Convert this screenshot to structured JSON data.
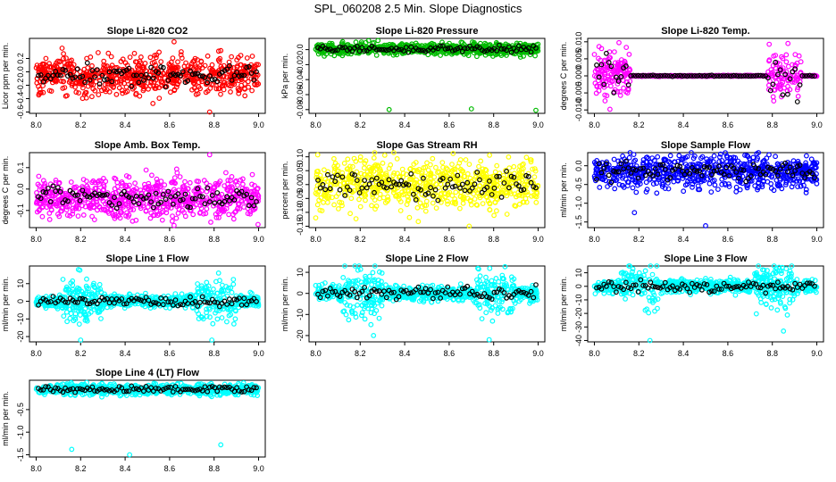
{
  "title": "SPL_060208  2.5 Min. Slope Diagnostics",
  "x_ticks": [
    "8.0",
    "8.2",
    "8.4",
    "8.6",
    "8.8",
    "9.0"
  ],
  "chart_data": [
    {
      "type": "scatter",
      "title": "Slope Li-820 CO2",
      "ylabel": "Licor ppm per min.",
      "color": "#ff0000",
      "xlim": [
        7.97,
        9.03
      ],
      "ylim": [
        -0.62,
        0.5
      ],
      "yticks": [
        -0.6,
        -0.4,
        -0.2,
        0.0,
        0.2
      ],
      "ytick_labels": [
        "-0.6",
        "-0.4",
        "-0.2",
        "0.0",
        "0.2"
      ],
      "center": -0.05,
      "spread": 0.14,
      "pattern": "uniform",
      "outliers": [
        [
          8.62,
          0.45
        ],
        [
          8.78,
          -0.6
        ]
      ]
    },
    {
      "type": "scatter",
      "title": "Slope Li-820 Pressure",
      "ylabel": "kPa per min.",
      "color": "#00bb00",
      "xlim": [
        7.97,
        9.03
      ],
      "ylim": [
        -0.085,
        0.015
      ],
      "yticks": [
        -0.08,
        -0.06,
        -0.04,
        -0.02,
        0.0
      ],
      "ytick_labels": [
        "-0.08",
        "-0.06",
        "-0.04",
        "-0.02",
        "0.0"
      ],
      "center": 0.001,
      "spread": 0.004,
      "pattern": "uniform",
      "outliers": [
        [
          8.33,
          -0.08
        ],
        [
          8.7,
          -0.079
        ],
        [
          8.99,
          -0.081
        ],
        [
          8.12,
          -0.008
        ]
      ]
    },
    {
      "type": "scatter",
      "title": "Slope Li-820 Temp.",
      "ylabel": "degrees C per min.",
      "color": "#ff00ff",
      "xlim": [
        7.97,
        9.03
      ],
      "ylim": [
        -0.011,
        0.011
      ],
      "yticks": [
        -0.01,
        -0.005,
        0.0,
        0.005,
        0.01
      ],
      "ytick_labels": [
        "-0.010",
        "-0.005",
        "0.000",
        "0.005",
        "0.010"
      ],
      "center": 0.0,
      "spread": 0.0035,
      "pattern": "temp",
      "outliers": [
        [
          8.07,
          -0.0098
        ],
        [
          8.87,
          0.0095
        ]
      ]
    },
    {
      "type": "scatter",
      "title": "Slope Amb. Box Temp.",
      "ylabel": "degrees C per min.",
      "color": "#ff00ff",
      "xlim": [
        7.97,
        9.03
      ],
      "ylim": [
        -0.18,
        0.17
      ],
      "yticks": [
        -0.1,
        0.0,
        0.1
      ],
      "ytick_labels": [
        "-0.1",
        "0.0",
        "0.1"
      ],
      "center": -0.04,
      "spread": 0.045,
      "pattern": "uniform",
      "outliers": [
        [
          8.62,
          -0.17
        ],
        [
          8.78,
          0.16
        ]
      ]
    },
    {
      "type": "scatter",
      "title": "Slope Gas Stream RH",
      "ylabel": "percent per min.",
      "color": "#ffff00",
      "xlim": [
        7.97,
        9.03
      ],
      "ylim": [
        -0.155,
        0.115
      ],
      "yticks": [
        -0.15,
        -0.1,
        -0.05,
        0.0,
        0.05,
        0.1
      ],
      "ytick_labels": [
        "-0.15",
        "-0.10",
        "-0.05",
        "0.00",
        "0.05",
        "0.10"
      ],
      "center": 0.0,
      "spread": 0.045,
      "pattern": "uniform",
      "outliers": [
        [
          8.69,
          -0.15
        ],
        [
          8.0,
          -0.12
        ]
      ]
    },
    {
      "type": "scatter",
      "title": "Slope Sample Flow",
      "ylabel": "ml/min per min.",
      "color": "#0000ff",
      "xlim": [
        7.97,
        9.03
      ],
      "ylim": [
        -1.65,
        0.35
      ],
      "yticks": [
        -1.5,
        -1.0,
        -0.5,
        0.0
      ],
      "ytick_labels": [
        "-1.5",
        "-1.0",
        "-0.5",
        "0.0"
      ],
      "center": -0.15,
      "spread": 0.22,
      "pattern": "uniform",
      "outliers": [
        [
          8.18,
          -1.25
        ],
        [
          8.5,
          -1.6
        ],
        [
          8.69,
          0.25
        ]
      ]
    },
    {
      "type": "scatter",
      "title": "Slope Line 1 Flow",
      "ylabel": "ml/min per min.",
      "color": "#00ffff",
      "xlim": [
        7.97,
        9.03
      ],
      "ylim": [
        -23,
        20
      ],
      "yticks": [
        -20,
        -10,
        0,
        10
      ],
      "ytick_labels": [
        "-20",
        "-10",
        "0",
        "10"
      ],
      "center": 0.0,
      "spread": 2.5,
      "pattern": "bursty",
      "outliers": [
        [
          8.19,
          18
        ],
        [
          8.2,
          -22
        ],
        [
          8.79,
          -22
        ],
        [
          8.82,
          16
        ]
      ]
    },
    {
      "type": "scatter",
      "title": "Slope Line 2 Flow",
      "ylabel": "ml/min per min.",
      "color": "#00ffff",
      "xlim": [
        7.97,
        9.03
      ],
      "ylim": [
        -23,
        13
      ],
      "yticks": [
        -20,
        -10,
        0,
        10
      ],
      "ytick_labels": [
        "-20",
        "-10",
        "0",
        "10"
      ],
      "center": 0.0,
      "spread": 2.5,
      "pattern": "bursty",
      "outliers": [
        [
          8.19,
          11
        ],
        [
          8.78,
          -22
        ],
        [
          8.26,
          -20
        ]
      ]
    },
    {
      "type": "scatter",
      "title": "Slope Line 3 Flow",
      "ylabel": "ml/min per min.",
      "color": "#00ffff",
      "xlim": [
        7.97,
        9.03
      ],
      "ylim": [
        -41,
        15
      ],
      "yticks": [
        -40,
        -30,
        -20,
        -10,
        0,
        10
      ],
      "ytick_labels": [
        "-40",
        "-30",
        "-20",
        "-10",
        "0",
        "10"
      ],
      "center": 0.0,
      "spread": 3.5,
      "pattern": "bursty",
      "outliers": [
        [
          8.25,
          -40
        ],
        [
          8.85,
          -33
        ]
      ]
    },
    {
      "type": "scatter",
      "title": "Slope Line 4 (LT) Flow",
      "ylabel": "ml/min per min.",
      "color": "#00ffff",
      "xlim": [
        7.97,
        9.03
      ],
      "ylim": [
        -1.55,
        0.15
      ],
      "yticks": [
        -1.5,
        -1.0,
        -0.5
      ],
      "ytick_labels": [
        "-1.5",
        "-1.0",
        "-0.5"
      ],
      "center": -0.05,
      "spread": 0.06,
      "pattern": "uniform",
      "outliers": [
        [
          8.16,
          -1.38
        ],
        [
          8.42,
          -1.5
        ],
        [
          8.83,
          -1.28
        ]
      ]
    }
  ]
}
